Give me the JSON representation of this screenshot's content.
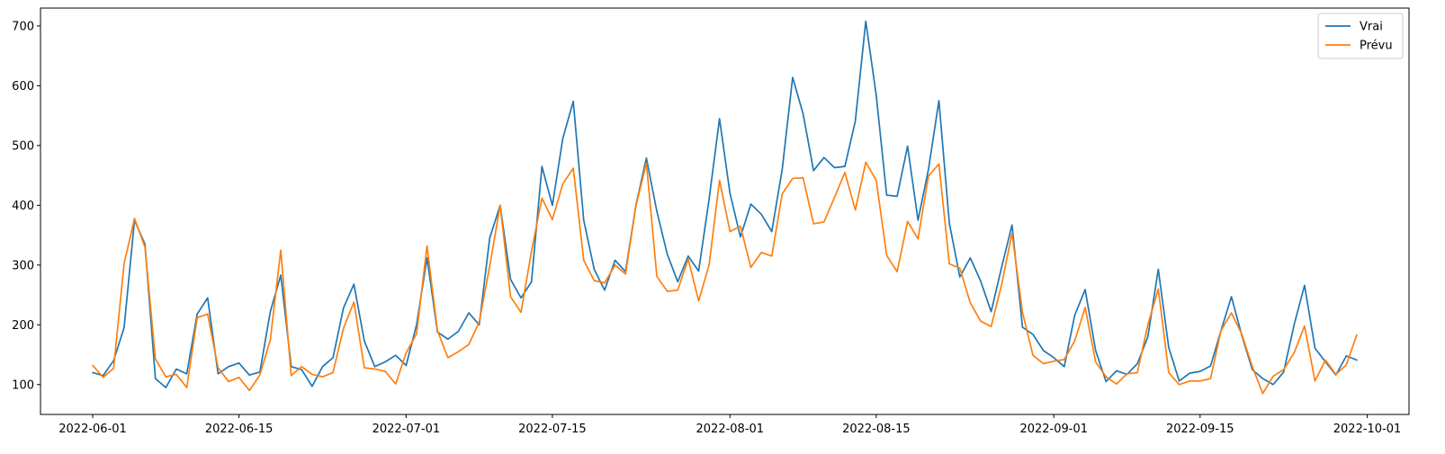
{
  "chart_data": {
    "type": "line",
    "title": "",
    "xlabel": "",
    "ylabel": "",
    "x_start": "2022-06-01",
    "x_end": "2022-09-30",
    "xlim": [
      "2022-05-27",
      "2022-10-05"
    ],
    "ylim": [
      50,
      730
    ],
    "x_ticks": [
      "2022-06-01",
      "2022-06-15",
      "2022-07-01",
      "2022-07-15",
      "2022-08-01",
      "2022-08-15",
      "2022-09-01",
      "2022-09-15",
      "2022-10-01"
    ],
    "y_ticks": [
      100,
      200,
      300,
      400,
      500,
      600,
      700
    ],
    "legend_position": "top-right",
    "grid": false,
    "series": [
      {
        "name": "Vrai",
        "color": "#1f77b4",
        "values": [
          120,
          115,
          140,
          195,
          375,
          335,
          110,
          95,
          126,
          118,
          218,
          245,
          118,
          130,
          136,
          116,
          121,
          222,
          283,
          130,
          125,
          97,
          130,
          145,
          228,
          268,
          173,
          130,
          138,
          149,
          132,
          200,
          312,
          188,
          176,
          189,
          220,
          200,
          345,
          400,
          276,
          245,
          272,
          465,
          400,
          512,
          574,
          375,
          293,
          258,
          308,
          289,
          400,
          479,
          390,
          318,
          272,
          315,
          290,
          410,
          545,
          420,
          347,
          402,
          385,
          356,
          460,
          614,
          553,
          458,
          480,
          463,
          465,
          541,
          708,
          584,
          417,
          415,
          499,
          375,
          460,
          575,
          370,
          280,
          312,
          273,
          222,
          296,
          367,
          196,
          184,
          157,
          145,
          130,
          216,
          259,
          157,
          105,
          123,
          117,
          135,
          180,
          293,
          162,
          106,
          119,
          122,
          131,
          190,
          247,
          182,
          125,
          110,
          100,
          121,
          200,
          266,
          161,
          138,
          116,
          148,
          141
        ]
      },
      {
        "name": "Prévu",
        "color": "#ff7f0e",
        "values": [
          132,
          112,
          127,
          302,
          378,
          330,
          143,
          113,
          117,
          95,
          212,
          218,
          128,
          105,
          112,
          90,
          116,
          175,
          325,
          115,
          130,
          117,
          113,
          120,
          194,
          238,
          128,
          126,
          122,
          101,
          153,
          185,
          332,
          190,
          145,
          155,
          167,
          205,
          298,
          400,
          247,
          221,
          323,
          412,
          376,
          436,
          462,
          308,
          274,
          270,
          300,
          285,
          399,
          471,
          281,
          256,
          258,
          310,
          240,
          300,
          442,
          356,
          365,
          296,
          321,
          315,
          419,
          445,
          446,
          369,
          372,
          413,
          455,
          392,
          472,
          442,
          316,
          289,
          373,
          344,
          449,
          469,
          302,
          295,
          237,
          206,
          197,
          267,
          353,
          221,
          149,
          135,
          139,
          142,
          173,
          229,
          138,
          113,
          101,
          118,
          120,
          200,
          260,
          120,
          100,
          106,
          106,
          110,
          190,
          220,
          184,
          130,
          85,
          114,
          125,
          153,
          198,
          106,
          141,
          117,
          133,
          183
        ]
      }
    ]
  }
}
